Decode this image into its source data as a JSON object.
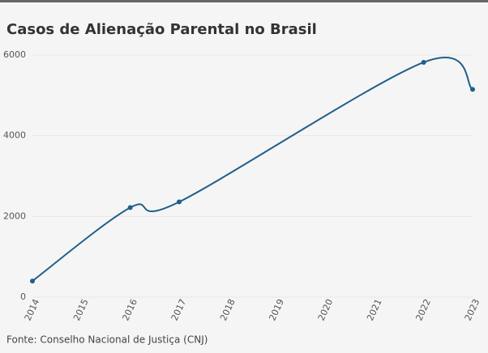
{
  "chart_data": {
    "type": "line",
    "title": "Casos de Alienação Parental no Brasil",
    "x": [
      2014,
      2016,
      2017,
      2022,
      2023
    ],
    "series": [
      {
        "name": "Casos",
        "color": "#1f5f8b",
        "values": [
          400,
          2220,
          2360,
          5820,
          5150
        ]
      }
    ],
    "xlim": [
      2014,
      2023
    ],
    "xticks": [
      2014,
      2015,
      2016,
      2017,
      2018,
      2019,
      2020,
      2021,
      2022,
      2023
    ],
    "ylim": [
      0,
      6000
    ],
    "yticks": [
      0,
      2000,
      4000,
      6000
    ],
    "grid": true,
    "source": "Fonte: Conselho Nacional de Justiça (CNJ)"
  }
}
